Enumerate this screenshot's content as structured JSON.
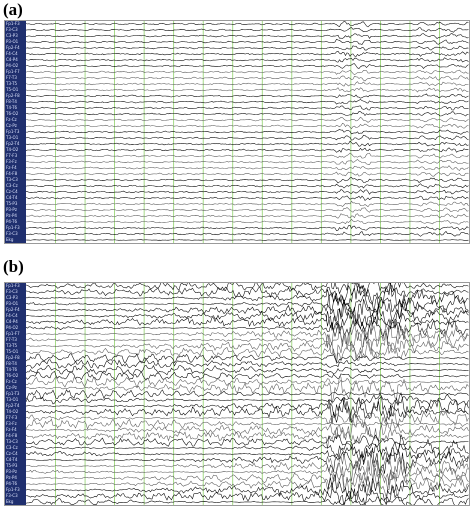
{
  "panels": [
    {
      "id": "a",
      "label": "(a)",
      "channels": [
        "Fp1-F3",
        "F3-C3",
        "C3-P3",
        "P3-O1",
        "Fp2-F4",
        "F4-C4",
        "C4-P4",
        "P4-O2",
        "Fp1-F7",
        "F7-T3",
        "T3-T5",
        "T5-O1",
        "Fp2-F8",
        "F8-T4",
        "T4-T6",
        "T6-O2",
        "Fz-Cz",
        "Cz-Pz",
        "Fp1-T3",
        "T3-O1",
        "Fp2-T4",
        "T4-O2",
        "F7-F3",
        "F3-Fz",
        "Fz-F4",
        "F4-F8",
        "T3-C3",
        "C3-Cz",
        "Cz-C4",
        "C4-T4",
        "T5-P3",
        "P3-Pz",
        "Pz-P4",
        "P4-T6",
        "Fp1-F3",
        "F3-C3",
        "Ekg"
      ],
      "channel_colors": [
        "#000000",
        "#000000",
        "#000000",
        "#000000",
        "#000000",
        "#000000",
        "#000000",
        "#000000",
        "#5a5a5a",
        "#5a5a5a",
        "#5a5a5a",
        "#5a5a5a",
        "#000000",
        "#000000",
        "#000000",
        "#000000",
        "#5a5a5a",
        "#5a5a5a",
        "#000000",
        "#000000",
        "#000000",
        "#000000",
        "#5a5a5a",
        "#5a5a5a",
        "#5a5a5a",
        "#5a5a5a",
        "#000000",
        "#000000",
        "#000000",
        "#000000",
        "#5a5a5a",
        "#5a5a5a",
        "#5a5a5a",
        "#5a5a5a",
        "#000000",
        "#000000",
        "#000000"
      ],
      "activity": "low"
    },
    {
      "id": "b",
      "label": "(b)",
      "channels": [
        "Fp1-F3",
        "F3-C3",
        "C3-P3",
        "P3-O1",
        "Fp2-F4",
        "F4-C4",
        "C4-P4",
        "P4-O2",
        "Fp1-F7",
        "F7-T3",
        "T3-T5",
        "T5-O1",
        "Fp2-F8",
        "F8-T4",
        "T4-T6",
        "T6-O2",
        "Fz-Cz",
        "Cz-Pz",
        "Fp1-T3",
        "T3-O1",
        "Fp2-T4",
        "T4-O2",
        "F7-F3",
        "F3-Fz",
        "Fz-F4",
        "F4-F8",
        "T3-C3",
        "C3-Cz",
        "Cz-C4",
        "C4-T4",
        "T5-P3",
        "P3-Pz",
        "Pz-P4",
        "P4-T6",
        "Fp1-F3",
        "F3-C3",
        "Ekg"
      ],
      "channel_colors": [
        "#000000",
        "#000000",
        "#000000",
        "#000000",
        "#000000",
        "#000000",
        "#000000",
        "#000000",
        "#5a5a5a",
        "#5a5a5a",
        "#5a5a5a",
        "#5a5a5a",
        "#000000",
        "#000000",
        "#000000",
        "#000000",
        "#5a5a5a",
        "#5a5a5a",
        "#000000",
        "#000000",
        "#000000",
        "#000000",
        "#5a5a5a",
        "#5a5a5a",
        "#5a5a5a",
        "#5a5a5a",
        "#000000",
        "#000000",
        "#000000",
        "#000000",
        "#5a5a5a",
        "#5a5a5a",
        "#5a5a5a",
        "#5a5a5a",
        "#000000",
        "#000000",
        "#000000"
      ],
      "activity": "high"
    }
  ],
  "colors": {
    "sidebar": "#1f2f6e",
    "sidebar_text": "#dfe6ff",
    "grid_line": "#8fd16b",
    "trace": "#1a1a1a"
  },
  "grid_divisions": 15
}
